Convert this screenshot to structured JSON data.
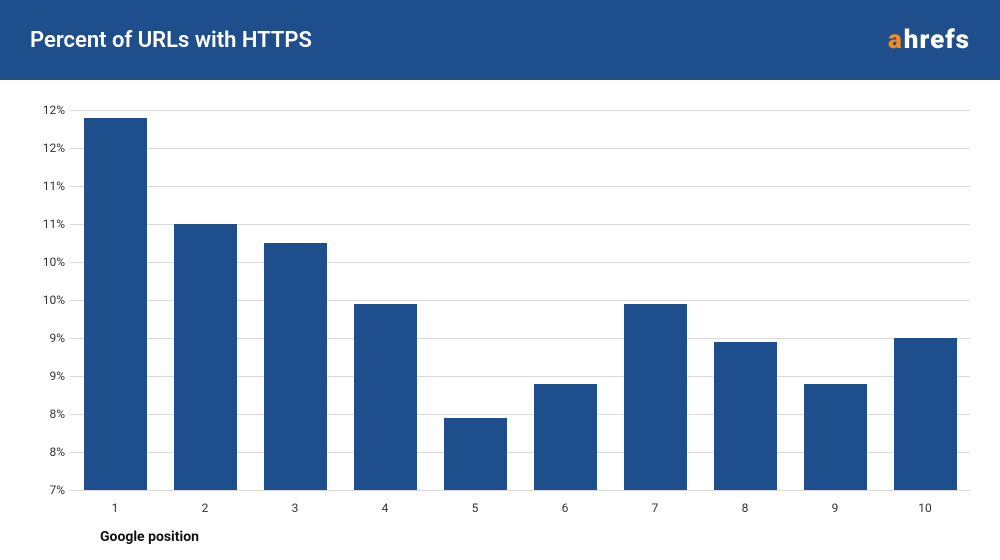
{
  "header": {
    "title": "Percent of URLs with HTTPS",
    "background_color": "#1f4e8c",
    "title_color": "#ffffff",
    "title_fontsize": 22,
    "logo": {
      "a": "a",
      "rest": "hrefs",
      "a_color": "#f68b1f",
      "rest_color": "#ffffff",
      "fontsize": 26
    }
  },
  "chart": {
    "type": "bar",
    "categories": [
      "1",
      "2",
      "3",
      "4",
      "5",
      "6",
      "7",
      "8",
      "9",
      "10"
    ],
    "values": [
      11.9,
      10.5,
      10.25,
      9.45,
      7.95,
      8.4,
      9.45,
      8.95,
      8.4,
      9.0
    ],
    "bar_color": "#1f4e8c",
    "background_color": "#ffffff",
    "grid_color": "#d9d9d9",
    "ylim": [
      7,
      12
    ],
    "yticks": [
      7,
      7.5,
      8,
      8.5,
      9,
      9.5,
      10,
      10.5,
      11,
      11.5,
      12
    ],
    "ytick_labels": [
      "7%",
      "8%",
      "8%",
      "9%",
      "9%",
      "10%",
      "10%",
      "11%",
      "11%",
      "12%",
      "12%"
    ],
    "ytick_fontsize": 12,
    "xtick_fontsize": 12,
    "xlabel": "Google position",
    "xlabel_fontsize": 14,
    "bar_width": 0.7
  }
}
